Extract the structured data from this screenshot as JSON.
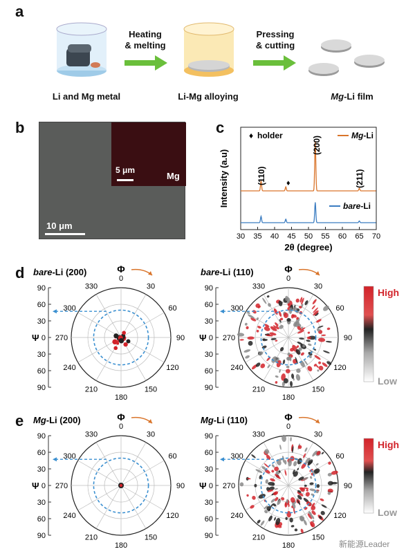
{
  "panel_a": {
    "label": "a",
    "step1_caption": "Li and Mg metal",
    "arrow1_line1": "Heating",
    "arrow1_line2": "& melting",
    "step2_caption": "Li-Mg alloying",
    "arrow2_line1": "Pressing",
    "arrow2_line2": "& cutting",
    "step3_caption_italic": "Mg",
    "step3_caption_rest": "-Li film"
  },
  "panel_b": {
    "label": "b",
    "scale_main": "10 μm",
    "scale_inset": "5 μm",
    "inset_element": "Mg"
  },
  "panel_c": {
    "label": "c",
    "holder_legend": "holder",
    "peak_110": "(110)",
    "peak_200": "(200)",
    "peak_211": "(211)",
    "series1_italic": "Mg",
    "series1_rest": "-Li",
    "series2_italic": "bare",
    "series2_rest": "-Li"
  },
  "chart_data": [
    {
      "type": "line",
      "xlabel": "2θ (degree)",
      "ylabel": "Intensity (a.u)",
      "xlim": [
        30,
        70
      ],
      "xticks": [
        30,
        35,
        40,
        45,
        50,
        55,
        60,
        65,
        70
      ],
      "series": [
        {
          "name": "Mg-Li",
          "color": "#d9742a",
          "peaks": [
            {
              "x": 36.0,
              "h": 0.2
            },
            {
              "x": 43.3,
              "h": 0.08
            },
            {
              "x": 52.0,
              "h": 1.0
            },
            {
              "x": 65.0,
              "h": 0.05
            }
          ]
        },
        {
          "name": "bare-Li",
          "color": "#3a7cc1",
          "peaks": [
            {
              "x": 36.0,
              "h": 0.22
            },
            {
              "x": 43.3,
              "h": 0.12
            },
            {
              "x": 52.0,
              "h": 0.7
            },
            {
              "x": 65.0,
              "h": 0.06
            }
          ]
        }
      ],
      "annotations": [
        "(110)",
        "(200)",
        "(211)"
      ]
    }
  ],
  "pole_figures": {
    "panel_d_label": "d",
    "panel_e_label": "e",
    "phi_symbol": "Φ",
    "psi_symbol": "Ψ",
    "angles": [
      "0",
      "30",
      "60",
      "90",
      "120",
      "150",
      "180",
      "210",
      "240",
      "270",
      "300",
      "330"
    ],
    "psi_ticks": [
      "90",
      "60",
      "30",
      "0",
      "30",
      "60",
      "90"
    ],
    "legend_high": "High",
    "legend_low": "Low",
    "titles": [
      {
        "italic": "bare",
        "rest": "-Li (200)"
      },
      {
        "italic": "bare",
        "rest": "-Li (110)"
      },
      {
        "italic": "Mg",
        "rest": "-Li (200)"
      },
      {
        "italic": "Mg",
        "rest": "-Li (110)"
      }
    ]
  },
  "watermark": "新能源Leader"
}
